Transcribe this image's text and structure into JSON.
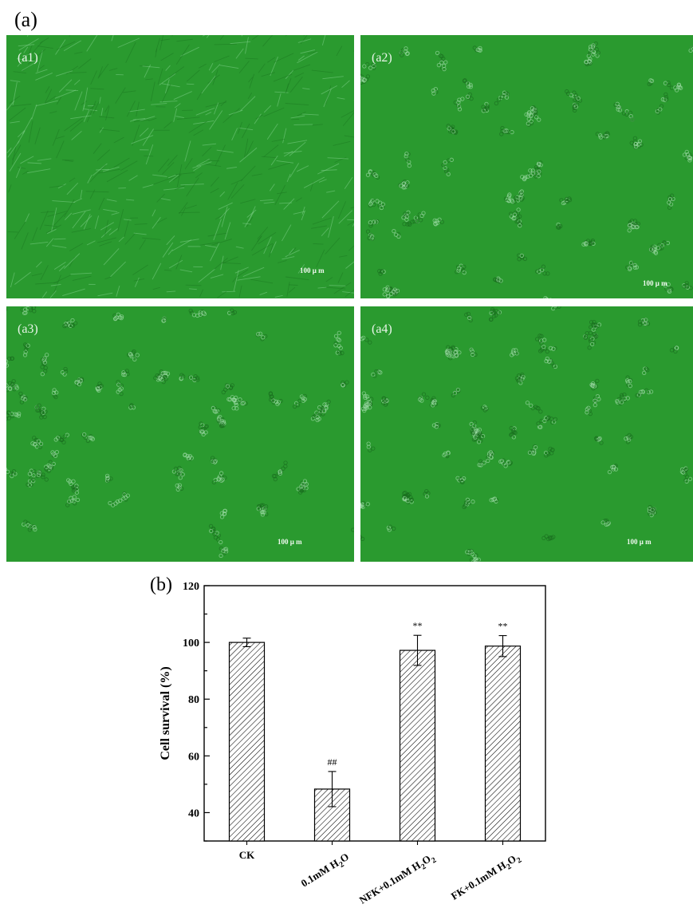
{
  "figure": {
    "panel_a_label": "(a)",
    "panel_b_label": "(b)",
    "micrographs": [
      {
        "label": "(a1)",
        "scale_bar": "100 μ m",
        "morphology": "spindle"
      },
      {
        "label": "(a2)",
        "scale_bar": "100 μ m",
        "morphology": "clustered"
      },
      {
        "label": "(a3)",
        "scale_bar": "100 μ m",
        "morphology": "clustered"
      },
      {
        "label": "(a4)",
        "scale_bar": "100 μ m",
        "morphology": "clustered"
      }
    ],
    "colors": {
      "micrograph_green": "#2a9a2f",
      "bar_hatch": "#000000"
    }
  },
  "chart_data": {
    "type": "bar",
    "title": "",
    "xlabel": "",
    "ylabel": "Cell  survival (%)",
    "ylim": [
      30,
      120
    ],
    "yticks": [
      40,
      60,
      80,
      100,
      120
    ],
    "categories": [
      {
        "main": "CK",
        "sub": ""
      },
      {
        "main": "0.1mM H",
        "sub": "2",
        "tail": "O"
      },
      {
        "main": "NFK+0.1mM H",
        "sub": "2",
        "tail": "O",
        "sub2": "2"
      },
      {
        "main": "FK+0.1mM H",
        "sub": "2",
        "tail": "O",
        "sub2": "2"
      }
    ],
    "values": [
      100,
      48.3,
      97.2,
      98.7
    ],
    "errors": [
      1.5,
      6.2,
      5.3,
      3.7
    ],
    "annotations": [
      "",
      "##",
      "**",
      "**"
    ],
    "bar_fill": "diagonal-hatch",
    "grid": false,
    "legend": "none"
  }
}
